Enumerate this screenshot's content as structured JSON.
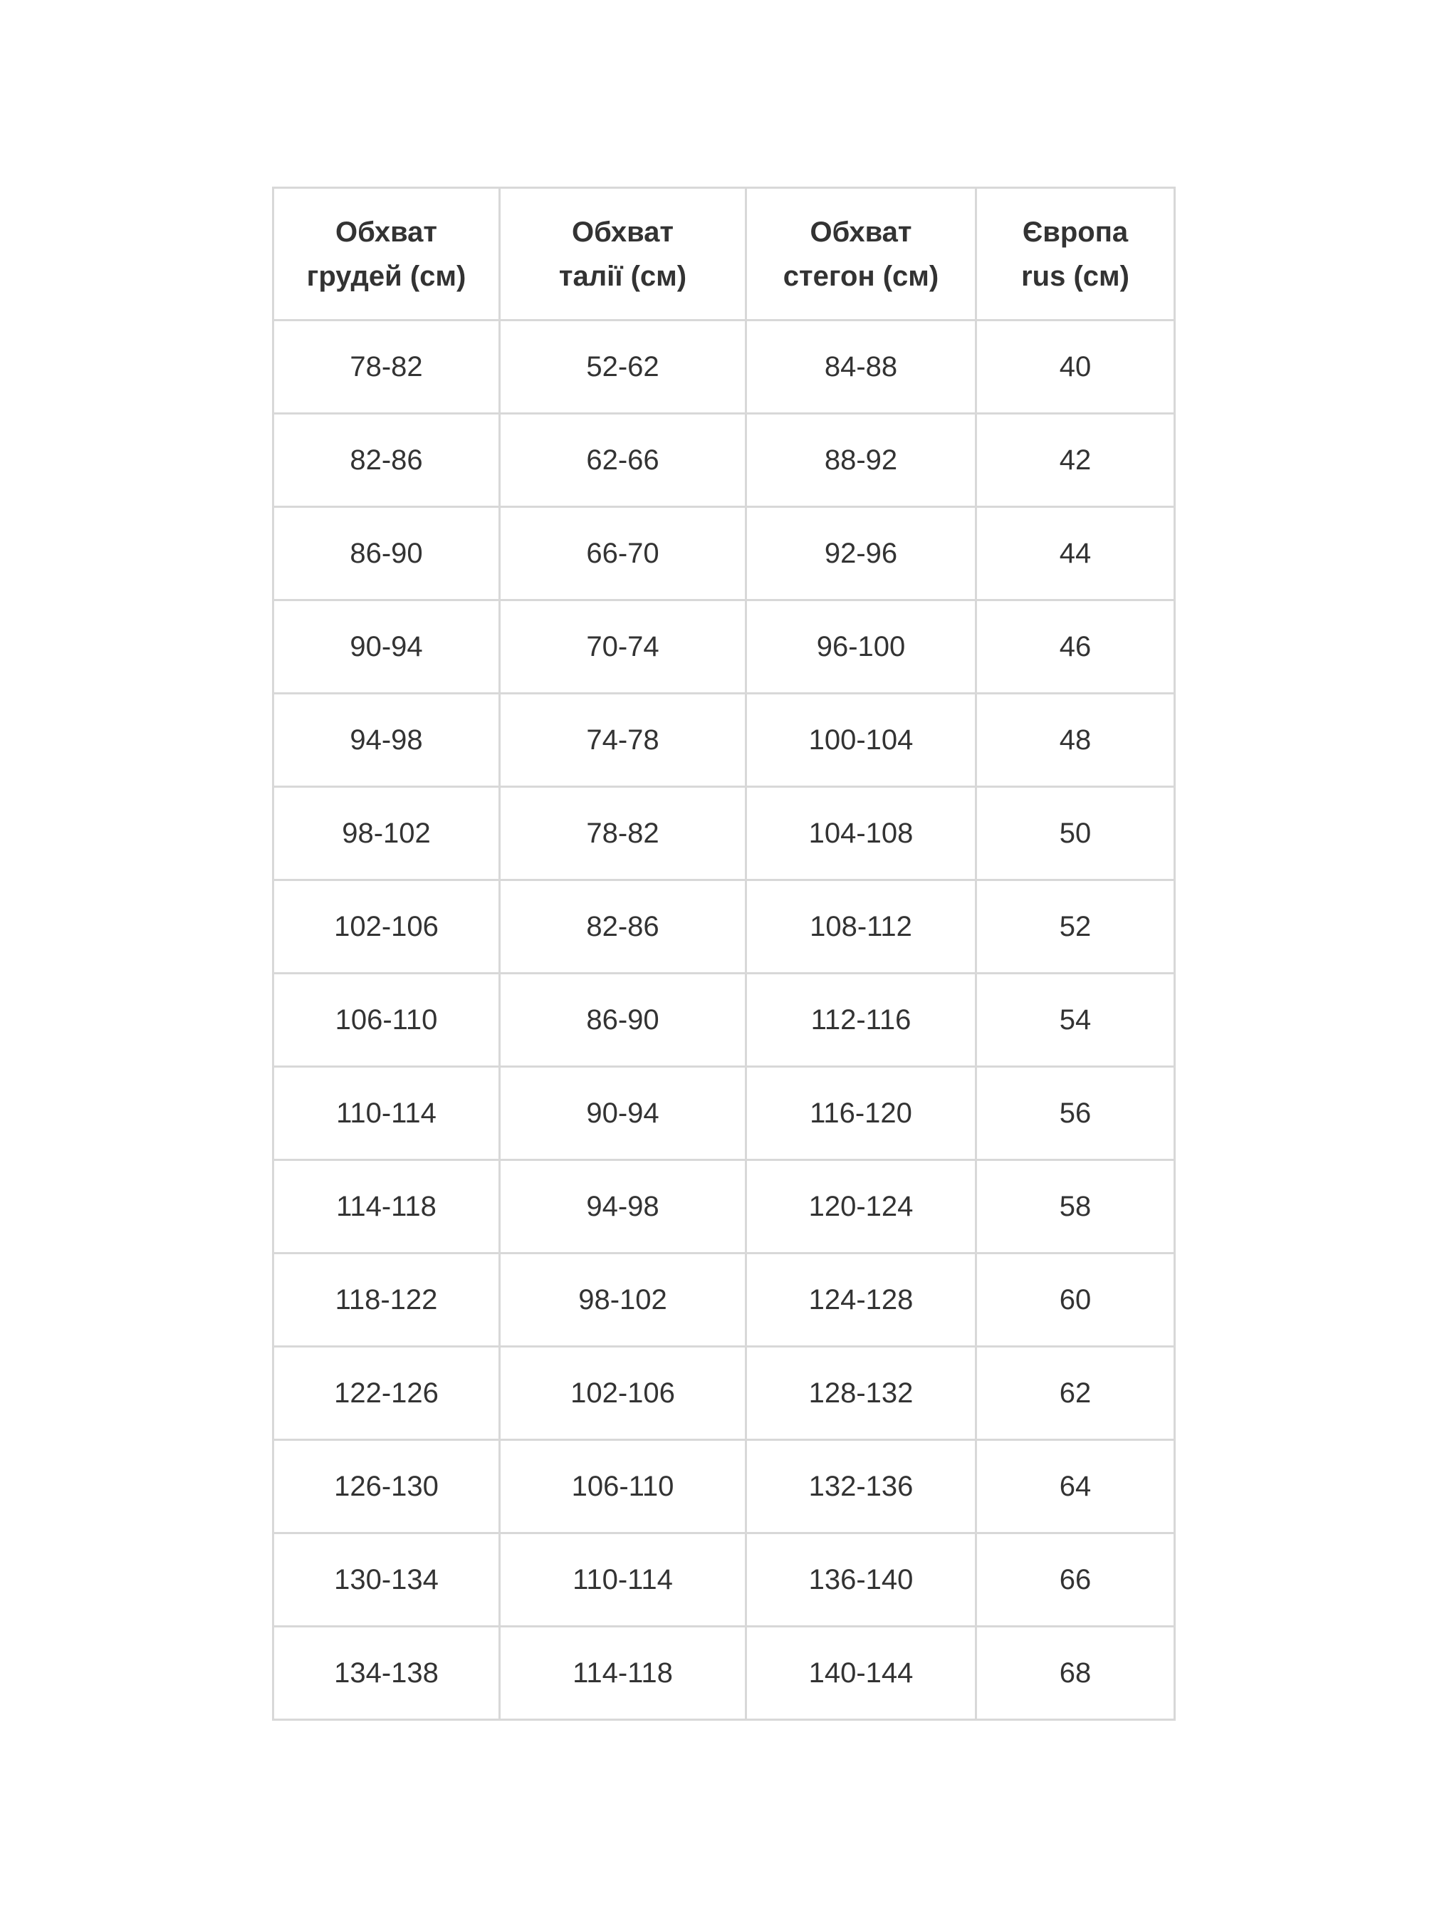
{
  "page": {
    "background_color": "#ffffff"
  },
  "table": {
    "name": "size-chart",
    "colors": {
      "text": "#333333",
      "border": "#d8d8d8",
      "background": "#ffffff"
    },
    "columns": [
      {
        "label": "Обхват\nгрудей (см)"
      },
      {
        "label": "Обхват\nталії (см)"
      },
      {
        "label": "Обхват\nстегон (см)"
      },
      {
        "label": "Європа\nrus (см)"
      }
    ],
    "rows": [
      [
        "78-82",
        "52-62",
        "84-88",
        "40"
      ],
      [
        "82-86",
        "62-66",
        "88-92",
        "42"
      ],
      [
        "86-90",
        "66-70",
        "92-96",
        "44"
      ],
      [
        "90-94",
        "70-74",
        "96-100",
        "46"
      ],
      [
        "94-98",
        "74-78",
        "100-104",
        "48"
      ],
      [
        "98-102",
        "78-82",
        "104-108",
        "50"
      ],
      [
        "102-106",
        "82-86",
        "108-112",
        "52"
      ],
      [
        "106-110",
        "86-90",
        "112-116",
        "54"
      ],
      [
        "110-114",
        "90-94",
        "116-120",
        "56"
      ],
      [
        "114-118",
        "94-98",
        "120-124",
        "58"
      ],
      [
        "118-122",
        "98-102",
        "124-128",
        "60"
      ],
      [
        "122-126",
        "102-106",
        "128-132",
        "62"
      ],
      [
        "126-130",
        "106-110",
        "132-136",
        "64"
      ],
      [
        "130-134",
        "110-114",
        "136-140",
        "66"
      ],
      [
        "134-138",
        "114-118",
        "140-144",
        "68"
      ]
    ]
  }
}
